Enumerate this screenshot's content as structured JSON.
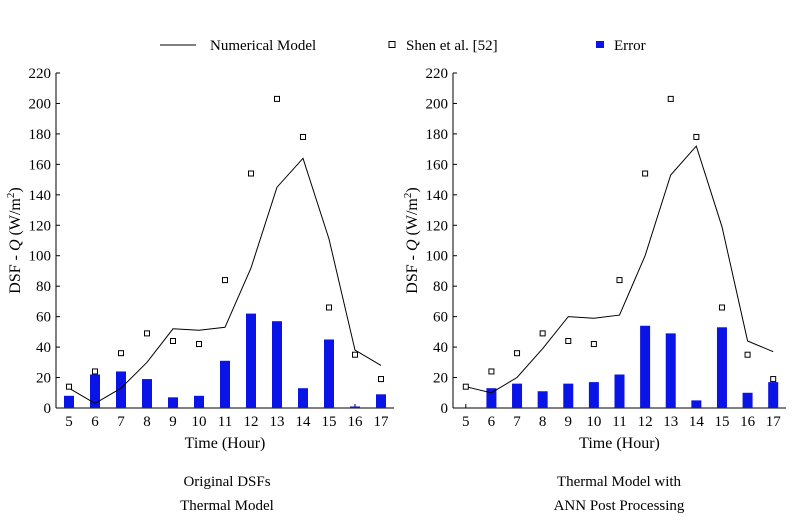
{
  "legend": {
    "model_label": "Numerical Model",
    "ref_label": "Shen et al. [52]",
    "error_label": "Error"
  },
  "colors": {
    "error_bar": "#0a14e6",
    "line": "#000000",
    "marker_fill": "#ffffff"
  },
  "chart_data": [
    {
      "type": "bar+line+scatter",
      "caption_line1": "Original DSFs",
      "caption_line2": "Thermal Model",
      "ylabel_prefix": "DSF - ",
      "ylabel_var": "Q",
      "ylabel_unit": "(W/m",
      "ylabel_sup": "2",
      "ylabel_close": ")",
      "xlabel": "Time (Hour)",
      "x": [
        5,
        6,
        7,
        8,
        9,
        10,
        11,
        12,
        13,
        14,
        15,
        16,
        17
      ],
      "xlim": [
        4.5,
        17.5
      ],
      "ylim": [
        0,
        220
      ],
      "yticks": [
        0,
        20,
        40,
        60,
        80,
        100,
        120,
        140,
        160,
        180,
        200,
        220
      ],
      "series": [
        {
          "name": "Numerical Model",
          "kind": "line",
          "values": [
            13,
            3,
            13,
            30,
            52,
            51,
            53,
            92,
            145,
            164,
            111,
            38,
            28
          ]
        },
        {
          "name": "Shen et al. [52]",
          "kind": "scatter",
          "values": [
            14,
            24,
            36,
            49,
            44,
            42,
            84,
            154,
            203,
            178,
            66,
            35,
            19
          ]
        },
        {
          "name": "Error",
          "kind": "bar",
          "values": [
            8,
            22,
            24,
            19,
            7,
            8,
            31,
            62,
            57,
            13,
            45,
            1,
            9
          ]
        }
      ]
    },
    {
      "type": "bar+line+scatter",
      "caption_line1": "Thermal Model with",
      "caption_line2": "ANN Post Processing",
      "ylabel_prefix": "DSF - ",
      "ylabel_var": "Q",
      "ylabel_unit": "(W/m",
      "ylabel_sup": "2",
      "ylabel_close": ")",
      "xlabel": "Time (Hour)",
      "x": [
        5,
        6,
        7,
        8,
        9,
        10,
        11,
        12,
        13,
        14,
        15,
        16,
        17
      ],
      "xlim": [
        4.5,
        17.5
      ],
      "ylim": [
        0,
        220
      ],
      "yticks": [
        0,
        20,
        40,
        60,
        80,
        100,
        120,
        140,
        160,
        180,
        200,
        220
      ],
      "series": [
        {
          "name": "Numerical Model",
          "kind": "line",
          "values": [
            14,
            10,
            20,
            39,
            60,
            59,
            61,
            100,
            153,
            172,
            119,
            44,
            37
          ]
        },
        {
          "name": "Shen et al. [52]",
          "kind": "scatter",
          "values": [
            14,
            24,
            36,
            49,
            44,
            42,
            84,
            154,
            203,
            178,
            66,
            35,
            19
          ]
        },
        {
          "name": "Error",
          "kind": "bar",
          "values": [
            0,
            13,
            16,
            11,
            16,
            17,
            22,
            54,
            49,
            5,
            53,
            10,
            17
          ]
        }
      ]
    }
  ]
}
